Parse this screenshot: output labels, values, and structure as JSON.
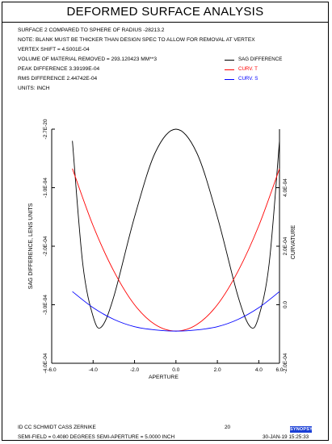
{
  "title": "DEFORMED SURFACE ANALYSIS",
  "header_lines": [
    "SURFACE   2 COMPARED TO SPHERE OF RADIUS   -28213.2",
    "NOTE: BLANK MUST BE THICKER THAN DESIGN SPEC TO ALLOW FOR REMOVAL AT VERTEX",
    "VERTEX SHIFT =  4.5001E-04",
    "VOLUME OF MATERIAL REMOVED =  293.120423 MM**3",
    "PEAK DIFFERENCE  3.39199E-04",
    "RMS DIFFERENCE   2.44742E-04",
    "UNITS: INCH"
  ],
  "footer": {
    "id_label": "ID CC SCHMIDT CASS ZERNIKE",
    "page_number": "20",
    "semi_field": "SEMI-FIELD =   0.4080 DEGREES   SEMI-APERTURE =  5.0000 INCH",
    "datetime": "30-JAN-19  15:25:33",
    "logo_text": "SYNOPSYS"
  },
  "chart_data": {
    "type": "line",
    "title": "DEFORMED SURFACE ANALYSIS",
    "xlabel": "APERTURE",
    "ylabel_left": "SAG DIFFERENCE, LENS UNITS",
    "ylabel_right": "CURVATURE",
    "xlim": [
      -6.0,
      5.0
    ],
    "x_ticks": [
      "-6.0",
      "-4.0",
      "-2.0",
      "0.0",
      "2.0",
      "4.0",
      "6.0"
    ],
    "y_left_ticks": [
      "-2.7E-20",
      "-1.0E-04",
      "-2.0E-04",
      "-3.0E-04",
      "-4.0E-04"
    ],
    "y_right_ticks": [
      "4.0E-04",
      "2.0E-04",
      "0.0",
      "-2.0E-04"
    ],
    "ylim_left": [
      -0.0004,
      0.0
    ],
    "ylim_right": [
      -0.0002,
      0.0006
    ],
    "legend_position": "top-right",
    "grid": false,
    "series": [
      {
        "name": "SAG DIFFERENCE",
        "axis": "left",
        "color": "#000000",
        "x": [
          -5.0,
          -4.5,
          -4.0,
          -3.6,
          -3.0,
          -2.0,
          -1.0,
          0.0,
          1.0,
          2.0,
          3.0,
          3.6,
          4.0,
          4.5,
          5.0
        ],
        "y": [
          -2e-05,
          -0.00023,
          -0.00032,
          -0.000338,
          -0.000286,
          -0.00015,
          -4e-05,
          0.0,
          -4e-05,
          -0.00015,
          -0.000286,
          -0.000338,
          -0.00032,
          -0.00023,
          -2e-05
        ]
      },
      {
        "name": "CURV. T",
        "axis": "right",
        "color": "#ff0000",
        "x": [
          -5.0,
          -4.0,
          -3.0,
          -2.0,
          -1.0,
          0.0,
          1.0,
          2.0,
          3.0,
          4.0,
          5.0
        ],
        "y": [
          0.000465,
          0.00027,
          0.000115,
          0.0,
          -6.8e-05,
          -9e-05,
          -6.8e-05,
          0.0,
          0.000115,
          0.00027,
          0.000465
        ]
      },
      {
        "name": "CURV. S",
        "axis": "right",
        "color": "#0000ff",
        "x": [
          -5.0,
          -4.0,
          -3.0,
          -2.0,
          -1.0,
          0.0,
          1.0,
          2.0,
          3.0,
          4.0,
          5.0
        ],
        "y": [
          4.5e-05,
          -1e-05,
          -5e-05,
          -7.5e-05,
          -8.6e-05,
          -9e-05,
          -8.6e-05,
          -7.5e-05,
          -5e-05,
          -1e-05,
          4.5e-05
        ]
      }
    ]
  }
}
